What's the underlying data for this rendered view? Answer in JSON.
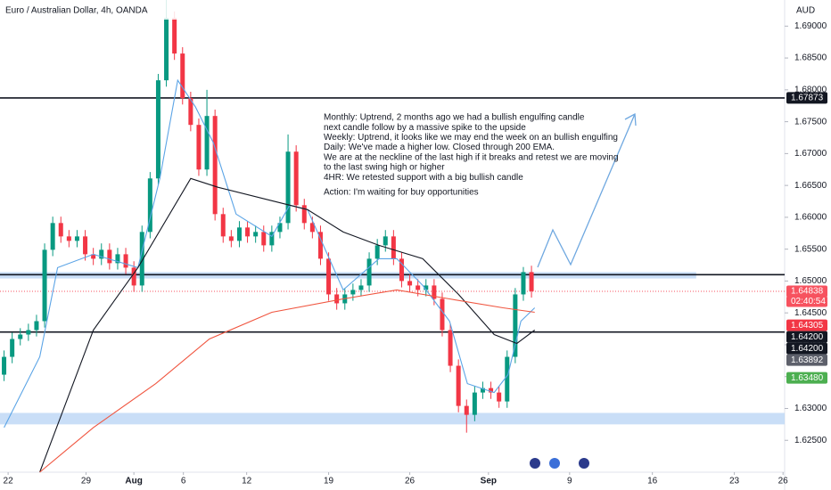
{
  "chart_data": {
    "type": "candlestick",
    "title": "Euro / Australian Dollar, 4h, OANDA",
    "currency": "AUD",
    "countdown": "02:40:54",
    "annotation": [
      "Monthly: Uptrend, 2 months ago we had a bullish engulfing candle",
      "next candle follow by a massive spike to the upside",
      "Weekly: Uptrend, it looks like we may end the week on an bullish engulfing",
      "Daily: We've made a higher low. Closed through 200 EMA.",
      "We are at the neckline of the last high if it breaks and retest we are moving",
      "to the last swing high or higher",
      "4HR: We retested support with a big bullish candle"
    ],
    "action": "Action: I'm waiting for buy opportunities",
    "up_color": "#089981",
    "down_color": "#f23645",
    "xlim": [
      -0.5,
      96.2
    ],
    "ylim": [
      1.62,
      1.6941
    ],
    "grid": false,
    "xticks": [
      {
        "value": 0.5,
        "label": "22"
      },
      {
        "value": 10.1,
        "label": "29"
      },
      {
        "value": 16,
        "label": "Aug"
      },
      {
        "value": 22.1,
        "label": "6"
      },
      {
        "value": 29.9,
        "label": "12"
      },
      {
        "value": 40,
        "label": "19"
      },
      {
        "value": 50,
        "label": "26"
      },
      {
        "value": 59.7,
        "label": "Sep"
      },
      {
        "value": 69.7,
        "label": "9"
      },
      {
        "value": 79.9,
        "label": "16"
      },
      {
        "value": 90,
        "label": "23"
      },
      {
        "value": 96,
        "label": "26"
      }
    ],
    "yticks": [
      {
        "value": 1.625,
        "label": "1.62500"
      },
      {
        "value": 1.63,
        "label": "1.63000"
      },
      {
        "value": 1.635,
        "label": "1.63500"
      },
      {
        "value": 1.64,
        "label": "1.64000"
      },
      {
        "value": 1.645,
        "label": "1.64500"
      },
      {
        "value": 1.65,
        "label": "1.65000"
      },
      {
        "value": 1.655,
        "label": "1.65500"
      },
      {
        "value": 1.66,
        "label": "1.66000"
      },
      {
        "value": 1.665,
        "label": "1.66500"
      },
      {
        "value": 1.67,
        "label": "1.67000"
      },
      {
        "value": 1.675,
        "label": "1.67500"
      },
      {
        "value": 1.68,
        "label": "1.68000"
      },
      {
        "value": 1.685,
        "label": "1.68500"
      },
      {
        "value": 1.69,
        "label": "1.69000"
      }
    ],
    "candles": {
      "open": [
        1.6353,
        1.6381,
        1.6409,
        1.6416,
        1.6423,
        1.6437,
        1.6549,
        1.6591,
        1.657,
        1.6563,
        1.657,
        1.6542,
        1.6535,
        1.6549,
        1.6528,
        1.6542,
        1.6521,
        1.6493,
        1.6577,
        1.6661,
        1.6815,
        1.6913,
        1.6857,
        1.6787,
        1.6745,
        1.6675,
        1.6759,
        1.6605,
        1.657,
        1.6563,
        1.6584,
        1.657,
        1.6577,
        1.6556,
        1.6577,
        1.6591,
        1.6703,
        1.6619,
        1.6591,
        1.6577,
        1.6535,
        1.6479,
        1.6465,
        1.6479,
        1.6486,
        1.6493,
        1.6535,
        1.6556,
        1.657,
        1.6535,
        1.65,
        1.6493,
        1.6486,
        1.6493,
        1.6472,
        1.6423,
        1.6367,
        1.6304,
        1.629,
        1.6325,
        1.6332,
        1.6325,
        1.6311,
        1.6381,
        1.6479,
        1.6514
      ],
      "high": [
        1.6391,
        1.6419,
        1.6426,
        1.6433,
        1.6447,
        1.6559,
        1.6601,
        1.6601,
        1.658,
        1.658,
        1.658,
        1.6552,
        1.6559,
        1.6559,
        1.6552,
        1.6552,
        1.6531,
        1.6587,
        1.6671,
        1.6825,
        1.6941,
        1.6923,
        1.6867,
        1.6797,
        1.6755,
        1.68,
        1.6769,
        1.6615,
        1.658,
        1.6594,
        1.6594,
        1.6587,
        1.6587,
        1.6587,
        1.6601,
        1.673,
        1.6713,
        1.6629,
        1.6601,
        1.6587,
        1.6545,
        1.6489,
        1.6489,
        1.6496,
        1.6503,
        1.6545,
        1.6566,
        1.658,
        1.658,
        1.6545,
        1.651,
        1.6503,
        1.6503,
        1.6503,
        1.6482,
        1.6433,
        1.6377,
        1.6314,
        1.6335,
        1.6342,
        1.6342,
        1.6335,
        1.6391,
        1.6489,
        1.6522,
        1.6524
      ],
      "low": [
        1.6343,
        1.6371,
        1.6399,
        1.6406,
        1.6413,
        1.6427,
        1.6539,
        1.656,
        1.6553,
        1.6553,
        1.6532,
        1.6525,
        1.6525,
        1.6518,
        1.6518,
        1.6511,
        1.6483,
        1.6483,
        1.6567,
        1.6651,
        1.6805,
        1.6847,
        1.6777,
        1.6735,
        1.6665,
        1.6665,
        1.6595,
        1.656,
        1.6553,
        1.6553,
        1.656,
        1.656,
        1.6546,
        1.6546,
        1.6567,
        1.6581,
        1.6609,
        1.6581,
        1.6567,
        1.6525,
        1.6469,
        1.6455,
        1.6455,
        1.6469,
        1.6476,
        1.6483,
        1.6525,
        1.6546,
        1.6525,
        1.649,
        1.6483,
        1.6476,
        1.6476,
        1.6462,
        1.6413,
        1.6357,
        1.6294,
        1.6262,
        1.628,
        1.6315,
        1.6315,
        1.6301,
        1.6301,
        1.6371,
        1.6469,
        1.6474
      ],
      "close": [
        1.6381,
        1.6409,
        1.6416,
        1.6423,
        1.6437,
        1.6549,
        1.6591,
        1.657,
        1.6563,
        1.657,
        1.6542,
        1.6535,
        1.6549,
        1.6528,
        1.6542,
        1.6521,
        1.6493,
        1.6577,
        1.6661,
        1.6815,
        1.6913,
        1.6857,
        1.6787,
        1.6745,
        1.6675,
        1.6759,
        1.6605,
        1.657,
        1.6563,
        1.6584,
        1.657,
        1.6577,
        1.6556,
        1.6577,
        1.6591,
        1.6703,
        1.6619,
        1.6591,
        1.6577,
        1.6535,
        1.6479,
        1.6465,
        1.6479,
        1.6486,
        1.6493,
        1.6535,
        1.6556,
        1.657,
        1.6535,
        1.65,
        1.6493,
        1.6486,
        1.6493,
        1.6472,
        1.6423,
        1.6367,
        1.6304,
        1.629,
        1.6325,
        1.6332,
        1.6325,
        1.6311,
        1.6381,
        1.6479,
        1.6514,
        1.6484
      ]
    },
    "series": [
      {
        "color": "#5ba4e6",
        "x": [
          0,
          4.4,
          6.6,
          11,
          16.5,
          19.2,
          21.4,
          23.6,
          25.8,
          28.6,
          33,
          35.2,
          37.4,
          39.6,
          41.8,
          46.2,
          48.4,
          51.6,
          54.9,
          57.1,
          60.4,
          62.1,
          63.7,
          65.4
        ],
        "values": [
          1.627,
          1.6381,
          1.6521,
          1.6542,
          1.6521,
          1.6661,
          1.6815,
          1.6773,
          1.6717,
          1.6605,
          1.657,
          1.6619,
          1.6612,
          1.6549,
          1.6486,
          1.6535,
          1.6535,
          1.6493,
          1.6437,
          1.6339,
          1.6325,
          1.6353,
          1.6437,
          1.6458
        ]
      },
      {
        "color": "#131722",
        "x": [
          4.4,
          11,
          16.5,
          23,
          26.4,
          33,
          37.4,
          41.8,
          46.2,
          51.6,
          56,
          60.4,
          63.2,
          65.4
        ],
        "values": [
          1.62,
          1.6423,
          1.6521,
          1.6661,
          1.6647,
          1.6626,
          1.6612,
          1.6577,
          1.6556,
          1.6535,
          1.6479,
          1.6416,
          1.6402,
          1.6423
        ]
      },
      {
        "color": "#f0553f",
        "x": [
          4.4,
          11,
          18.7,
          25.3,
          33,
          41.8,
          48.4,
          54.9,
          61.5,
          65.4
        ],
        "values": [
          1.62,
          1.627,
          1.6339,
          1.6409,
          1.6451,
          1.6472,
          1.6486,
          1.6472,
          1.6458,
          1.6451
        ]
      }
    ],
    "levels": [
      1.67873,
      1.651,
      1.642
    ],
    "zones": [
      {
        "low": 1.6504,
        "high": 1.6514,
        "x_end": 85.3
      },
      {
        "low": 1.6275,
        "high": 1.6293
      }
    ],
    "current_price": 1.64838,
    "price_tags": [
      {
        "value": 1.67873,
        "label": "1.67873",
        "color": "#131722"
      },
      {
        "value": 1.64838,
        "label": "1.64838",
        "color": "#f7525f"
      },
      {
        "value": 1.64305,
        "label": "1.64305",
        "color": "#f23645"
      },
      {
        "value": 1.642,
        "label": "1.64200",
        "color": "#131722"
      },
      {
        "value": 1.642,
        "label": "1.64200",
        "color": "#131722"
      },
      {
        "value": 1.63892,
        "label": "1.63892",
        "color": "#5d606b"
      },
      {
        "value": 1.6348,
        "label": "1.63480",
        "color": "#4caf50"
      }
    ]
  }
}
